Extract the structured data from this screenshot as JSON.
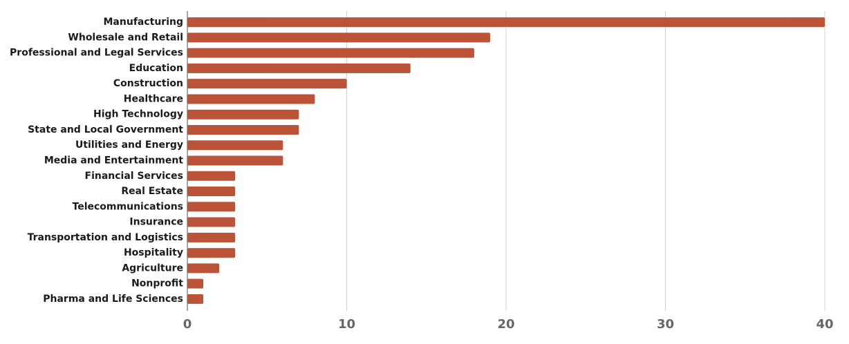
{
  "chart_data": {
    "type": "bar",
    "orientation": "horizontal",
    "categories": [
      "Manufacturing",
      "Wholesale and Retail",
      "Professional and Legal Services",
      "Education",
      "Construction",
      "Healthcare",
      "High Technology",
      "State and Local Government",
      "Utilities and Energy",
      "Media and Entertainment",
      "Financial Services",
      "Real Estate",
      "Telecommunications",
      "Insurance",
      "Transportation and Logistics",
      "Hospitality",
      "Agriculture",
      "Nonprofit",
      "Pharma and Life Sciences"
    ],
    "values": [
      40,
      19,
      18,
      14,
      10,
      8,
      7,
      7,
      6,
      6,
      3,
      3,
      3,
      3,
      3,
      3,
      2,
      1,
      1
    ],
    "color": "#bb5338",
    "xlim": [
      0,
      40
    ],
    "xticks": [
      0,
      10,
      20,
      30,
      40
    ],
    "grid": true
  }
}
